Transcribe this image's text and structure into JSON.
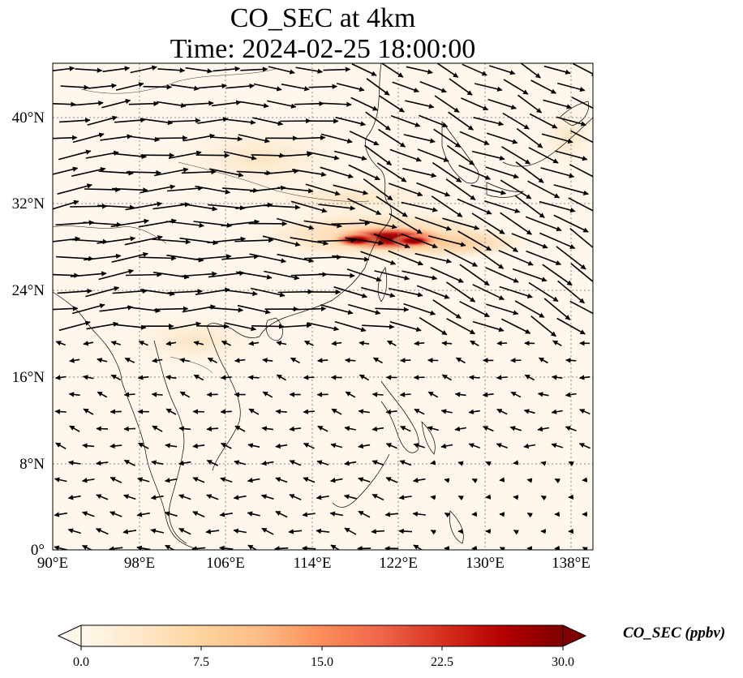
{
  "title": {
    "line1": "CO_SEC at 4km",
    "line2": "Time: 2024-02-25 18:00:00"
  },
  "map": {
    "extent": {
      "lon": [
        90,
        140
      ],
      "lat": [
        0,
        45
      ]
    },
    "lon_ticks": [
      "90°E",
      "98°E",
      "106°E",
      "114°E",
      "122°E",
      "130°E",
      "138°E"
    ],
    "lat_ticks": [
      "0°",
      "8°N",
      "16°N",
      "24°N",
      "32°N",
      "40°N"
    ],
    "gridlines": "dotted",
    "field_colormap": "OrRd",
    "wind_arrow_color": "#000000",
    "coastline_color": "#000000"
  },
  "colorbar": {
    "label": "CO_SEC (ppbv)",
    "ticks": [
      "0.0",
      "7.5",
      "15.0",
      "22.5",
      "30.0"
    ],
    "range": [
      0,
      30
    ],
    "extend": "both",
    "colors": [
      "#fff7ec",
      "#fee8c8",
      "#fdd49e",
      "#fdbb84",
      "#fc8d59",
      "#ef6548",
      "#d7301f",
      "#b30000",
      "#7f0000"
    ]
  }
}
